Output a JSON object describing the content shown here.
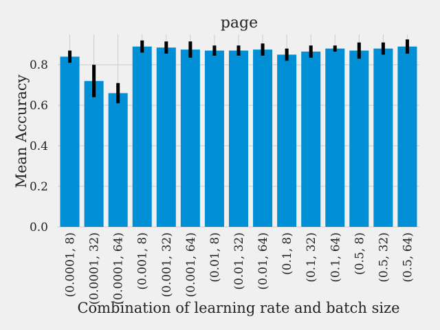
{
  "chart_data": {
    "type": "bar",
    "title": "page",
    "xlabel": "Combination of learning rate and batch size",
    "ylabel": "Mean Accuracy",
    "ylim": [
      0,
      0.95
    ],
    "yticks": [
      0.0,
      0.2,
      0.4,
      0.6,
      0.8
    ],
    "grid": true,
    "categories": [
      "(0.0001, 8)",
      "(0.0001, 32)",
      "(0.0001, 64)",
      "(0.001, 8)",
      "(0.001, 32)",
      "(0.001, 64)",
      "(0.01, 8)",
      "(0.01, 32)",
      "(0.01, 64)",
      "(0.1, 8)",
      "(0.1, 32)",
      "(0.1, 64)",
      "(0.5, 8)",
      "(0.5, 32)",
      "(0.5, 64)"
    ],
    "values": [
      0.84,
      0.72,
      0.66,
      0.89,
      0.885,
      0.875,
      0.87,
      0.87,
      0.875,
      0.85,
      0.865,
      0.88,
      0.87,
      0.88,
      0.89
    ],
    "errors": [
      0.03,
      0.08,
      0.05,
      0.03,
      0.03,
      0.04,
      0.025,
      0.025,
      0.03,
      0.03,
      0.03,
      0.015,
      0.04,
      0.03,
      0.035
    ],
    "colors": {
      "bar": "#008fd5",
      "error": "#000000",
      "grid": "#cbcbcb",
      "background": "#f0f0f0"
    }
  }
}
